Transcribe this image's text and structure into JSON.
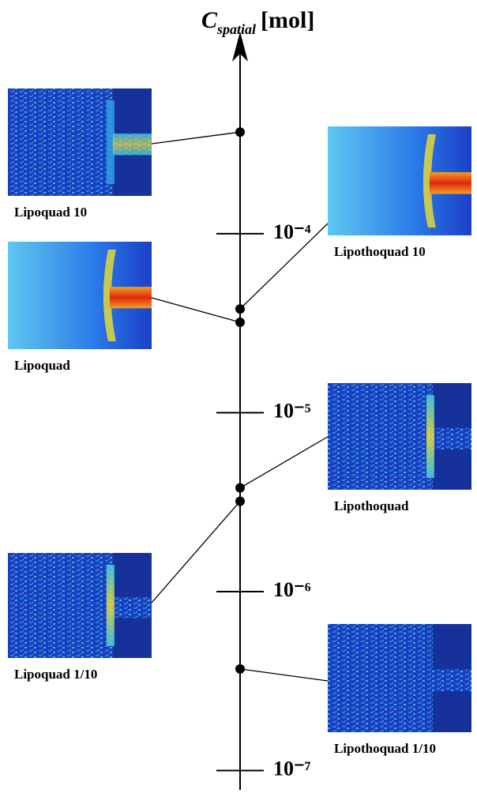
{
  "chart_data": {
    "type": "log-axis-points",
    "title": {
      "symbol": "C",
      "subscript": "spatial",
      "unit": "[mol]"
    },
    "log_scale": true,
    "ylim": [
      7.8e-08,
      0.0011
    ],
    "yticks": [
      {
        "value": 0.0001,
        "label": "10⁻⁴"
      },
      {
        "value": 1e-05,
        "label": "10⁻⁵"
      },
      {
        "value": 1e-06,
        "label": "10⁻⁶"
      },
      {
        "value": 1e-07,
        "label": "10⁻⁷"
      }
    ],
    "points": [
      {
        "label": "Lipoquad 10",
        "value": 0.00037
      },
      {
        "label": "Lipothoquad 10",
        "value": 3.8e-05
      },
      {
        "label": "Lipoquad",
        "value": 3.2e-05
      },
      {
        "label": "Lipothoquad",
        "value": 3.8e-06
      },
      {
        "label": "Lipoquad 1/10",
        "value": 3.2e-06
      },
      {
        "label": "Lipothoquad 1/10",
        "value": 3.7e-07
      }
    ]
  }
}
